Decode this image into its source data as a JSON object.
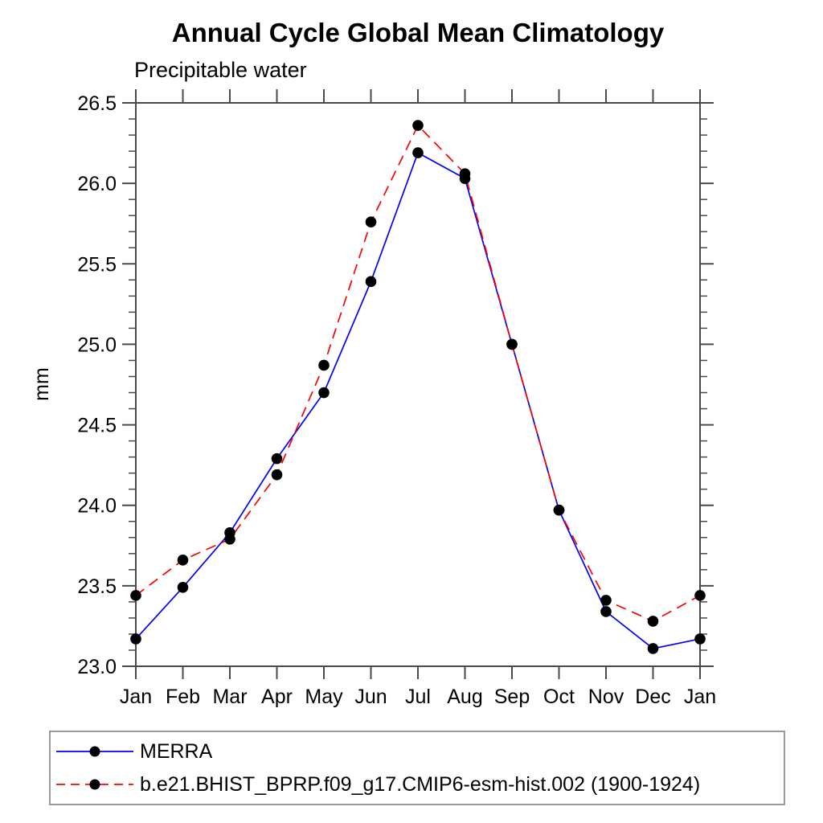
{
  "chart_data": {
    "type": "line",
    "title": "Annual Cycle Global Mean Climatology",
    "subtitle": "Precipitable water",
    "ylabel": "mm",
    "x_categories": [
      "Jan",
      "Feb",
      "Mar",
      "Apr",
      "May",
      "Jun",
      "Jul",
      "Aug",
      "Sep",
      "Oct",
      "Nov",
      "Dec",
      "Jan"
    ],
    "ylim": [
      23.0,
      26.5
    ],
    "y_major_tick_labels": [
      "23.0",
      "23.5",
      "24.0",
      "24.5",
      "25.0",
      "25.5",
      "26.0",
      "26.5"
    ],
    "y_minor_tick_step": 0.1,
    "grid": false,
    "legend_position": "bottom-left-box",
    "axis_color": "#4a4a4a",
    "legend_border_color": "#9a9a9a",
    "series": [
      {
        "name": "MERRA",
        "color": "#0000ff",
        "line_style": "solid",
        "marker": "filled-circle",
        "marker_color": "#000000",
        "values": [
          23.17,
          23.49,
          23.83,
          24.29,
          24.7,
          25.39,
          26.19,
          26.03,
          25.0,
          23.97,
          23.34,
          23.11,
          23.17
        ]
      },
      {
        "name": "b.e21.BHIST_BPRP.f09_g17.CMIP6-esm-hist.002 (1900-1924)",
        "color": "#ff0000",
        "line_style": "dashed",
        "marker": "filled-circle",
        "marker_color": "#000000",
        "values": [
          23.44,
          23.66,
          23.79,
          24.19,
          24.87,
          25.76,
          26.36,
          26.06,
          25.0,
          23.97,
          23.41,
          23.28,
          23.44
        ]
      }
    ]
  }
}
